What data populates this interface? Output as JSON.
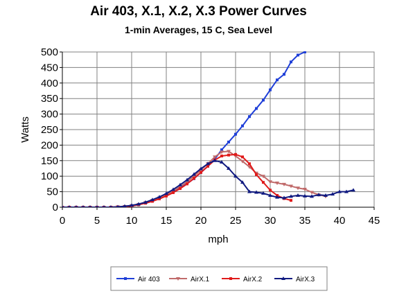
{
  "chart_data": {
    "type": "line",
    "title": "Air 403, X.1, X.2, X.3 Power Curves",
    "subtitle": "1-min Averages, 15 C, Sea Level",
    "xlabel": "mph",
    "ylabel": "Watts",
    "xlim": [
      0,
      45
    ],
    "ylim": [
      0,
      500
    ],
    "xticks": [
      0,
      5,
      10,
      15,
      20,
      25,
      30,
      35,
      40,
      45
    ],
    "yticks": [
      0,
      50,
      100,
      150,
      200,
      250,
      300,
      350,
      400,
      450,
      500
    ],
    "grid": true,
    "legend_position": "bottom",
    "series": [
      {
        "name": "Air 403",
        "color": "#1f3fd8",
        "marker": "square",
        "x": [
          0,
          1,
          2,
          3,
          4,
          5,
          6,
          7,
          8,
          9,
          10,
          11,
          12,
          13,
          14,
          15,
          16,
          17,
          18,
          19,
          20,
          21,
          22,
          23,
          24,
          25,
          26,
          27,
          28,
          29,
          30,
          31,
          32,
          33,
          34,
          35
        ],
        "y": [
          0,
          0,
          0,
          0,
          0,
          0,
          0,
          0,
          1,
          2,
          5,
          8,
          14,
          20,
          28,
          38,
          50,
          62,
          76,
          92,
          112,
          132,
          155,
          185,
          210,
          235,
          262,
          292,
          318,
          345,
          378,
          410,
          428,
          468,
          490,
          500
        ]
      },
      {
        "name": "AirX.1",
        "color": "#c06a6a",
        "marker": "triangle-down",
        "x": [
          0,
          1,
          2,
          3,
          4,
          5,
          6,
          7,
          8,
          9,
          10,
          11,
          12,
          13,
          14,
          15,
          16,
          17,
          18,
          19,
          20,
          21,
          22,
          23,
          24,
          25,
          26,
          27,
          28,
          29,
          30,
          31,
          32,
          33,
          34,
          35,
          36,
          37,
          38
        ],
        "y": [
          0,
          0,
          0,
          0,
          0,
          0,
          0,
          0,
          1,
          2,
          5,
          9,
          15,
          22,
          30,
          40,
          52,
          66,
          82,
          100,
          120,
          140,
          162,
          178,
          180,
          165,
          148,
          130,
          110,
          100,
          82,
          78,
          74,
          68,
          62,
          58,
          48,
          40,
          35
        ]
      },
      {
        "name": "AirX.2",
        "color": "#e01a1a",
        "marker": "square",
        "x": [
          0,
          1,
          2,
          3,
          4,
          5,
          6,
          7,
          8,
          9,
          10,
          11,
          12,
          13,
          14,
          15,
          16,
          17,
          18,
          19,
          20,
          21,
          22,
          23,
          24,
          25,
          26,
          27,
          28,
          29,
          30,
          31,
          32,
          33
        ],
        "y": [
          0,
          0,
          0,
          0,
          0,
          0,
          0,
          0,
          1,
          2,
          4,
          8,
          13,
          19,
          27,
          36,
          47,
          60,
          75,
          93,
          112,
          132,
          152,
          165,
          168,
          170,
          162,
          140,
          105,
          80,
          55,
          38,
          28,
          22
        ]
      },
      {
        "name": "AirX.3",
        "color": "#101a80",
        "marker": "triangle-up",
        "x": [
          0,
          1,
          2,
          3,
          4,
          5,
          6,
          7,
          8,
          9,
          10,
          11,
          12,
          13,
          14,
          15,
          16,
          17,
          18,
          19,
          20,
          21,
          22,
          23,
          24,
          25,
          26,
          27,
          28,
          29,
          30,
          31,
          32,
          33,
          34,
          35,
          36,
          37,
          38,
          39,
          40,
          41,
          42
        ],
        "y": [
          0,
          0,
          0,
          0,
          0,
          0,
          0,
          0,
          1,
          3,
          6,
          10,
          16,
          24,
          33,
          44,
          57,
          72,
          88,
          106,
          124,
          140,
          150,
          145,
          125,
          100,
          80,
          50,
          48,
          45,
          38,
          32,
          30,
          35,
          38,
          36,
          35,
          40,
          38,
          42,
          50,
          50,
          55
        ]
      }
    ]
  }
}
